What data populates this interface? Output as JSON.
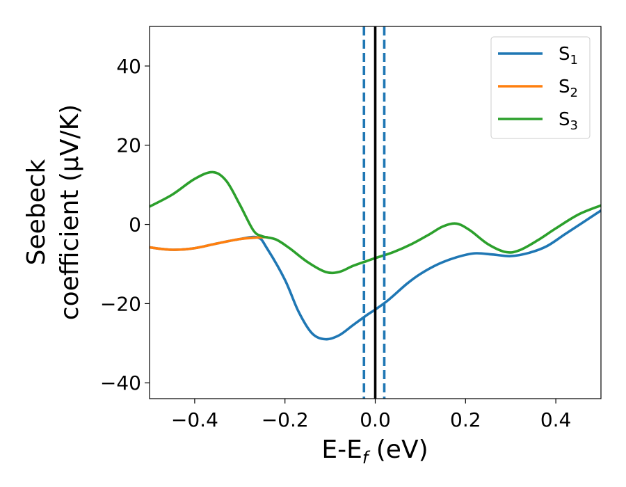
{
  "chart_data": {
    "type": "line",
    "xlabel_main": "E-E",
    "xlabel_sub": "f",
    "xlabel_unit": " (eV)",
    "ylabel_line1": "Seebeck",
    "ylabel_line2": "coefficient  (μV/K)",
    "xlim": [
      -0.5,
      0.5
    ],
    "ylim": [
      -44,
      50
    ],
    "xticks": [
      -0.4,
      -0.2,
      0.0,
      0.2,
      0.4
    ],
    "xtick_labels": [
      "−0.4",
      "−0.2",
      "0.0",
      "0.2",
      "0.4"
    ],
    "yticks": [
      -40,
      -20,
      0,
      20,
      40
    ],
    "ytick_labels": [
      "−40",
      "−20",
      "0",
      "20",
      "40"
    ],
    "grid": false,
    "legend_position": "top-right",
    "vlines": [
      {
        "x": 0.0,
        "color": "#000000",
        "style": "solid"
      },
      {
        "x": -0.025,
        "color": "#1f77b4",
        "style": "dashed"
      },
      {
        "x": 0.02,
        "color": "#1f77b4",
        "style": "dashed"
      }
    ],
    "series": [
      {
        "name_main": "S",
        "name_sub": "1",
        "color": "#1f77b4",
        "points": [
          [
            -0.5,
            -5.8
          ],
          [
            -0.45,
            -6.4
          ],
          [
            -0.4,
            -6.0
          ],
          [
            -0.35,
            -4.8
          ],
          [
            -0.3,
            -3.7
          ],
          [
            -0.26,
            -3.3
          ],
          [
            -0.24,
            -6.0
          ],
          [
            -0.2,
            -14.0
          ],
          [
            -0.17,
            -22.0
          ],
          [
            -0.14,
            -27.5
          ],
          [
            -0.11,
            -29.0
          ],
          [
            -0.08,
            -28.0
          ],
          [
            -0.05,
            -25.5
          ],
          [
            -0.02,
            -23.0
          ],
          [
            0.0,
            -21.5
          ],
          [
            0.03,
            -19.0
          ],
          [
            0.07,
            -15.0
          ],
          [
            0.1,
            -12.5
          ],
          [
            0.14,
            -10.0
          ],
          [
            0.18,
            -8.3
          ],
          [
            0.22,
            -7.3
          ],
          [
            0.26,
            -7.6
          ],
          [
            0.3,
            -8.0
          ],
          [
            0.34,
            -7.2
          ],
          [
            0.38,
            -5.5
          ],
          [
            0.42,
            -2.5
          ],
          [
            0.46,
            0.5
          ],
          [
            0.5,
            3.5
          ]
        ]
      },
      {
        "name_main": "S",
        "name_sub": "2",
        "color": "#ff7f0e",
        "points": [
          [
            -0.5,
            -5.8
          ],
          [
            -0.45,
            -6.4
          ],
          [
            -0.4,
            -6.0
          ],
          [
            -0.35,
            -4.8
          ],
          [
            -0.3,
            -3.7
          ],
          [
            -0.26,
            -3.3
          ],
          [
            -0.24,
            -3.2
          ]
        ]
      },
      {
        "name_main": "S",
        "name_sub": "3",
        "color": "#2ca02c",
        "points": [
          [
            -0.5,
            4.5
          ],
          [
            -0.45,
            7.5
          ],
          [
            -0.4,
            11.5
          ],
          [
            -0.36,
            13.2
          ],
          [
            -0.33,
            11.0
          ],
          [
            -0.3,
            5.0
          ],
          [
            -0.27,
            -1.5
          ],
          [
            -0.25,
            -3.0
          ],
          [
            -0.22,
            -3.8
          ],
          [
            -0.19,
            -6.0
          ],
          [
            -0.15,
            -9.5
          ],
          [
            -0.11,
            -12.0
          ],
          [
            -0.08,
            -12.0
          ],
          [
            -0.05,
            -10.5
          ],
          [
            -0.02,
            -9.3
          ],
          [
            0.0,
            -8.5
          ],
          [
            0.04,
            -7.0
          ],
          [
            0.08,
            -5.0
          ],
          [
            0.12,
            -2.5
          ],
          [
            0.15,
            -0.5
          ],
          [
            0.18,
            0.2
          ],
          [
            0.21,
            -1.5
          ],
          [
            0.25,
            -5.0
          ],
          [
            0.29,
            -7.0
          ],
          [
            0.32,
            -6.5
          ],
          [
            0.36,
            -4.0
          ],
          [
            0.4,
            -1.0
          ],
          [
            0.45,
            2.5
          ],
          [
            0.5,
            4.8
          ]
        ]
      }
    ]
  }
}
